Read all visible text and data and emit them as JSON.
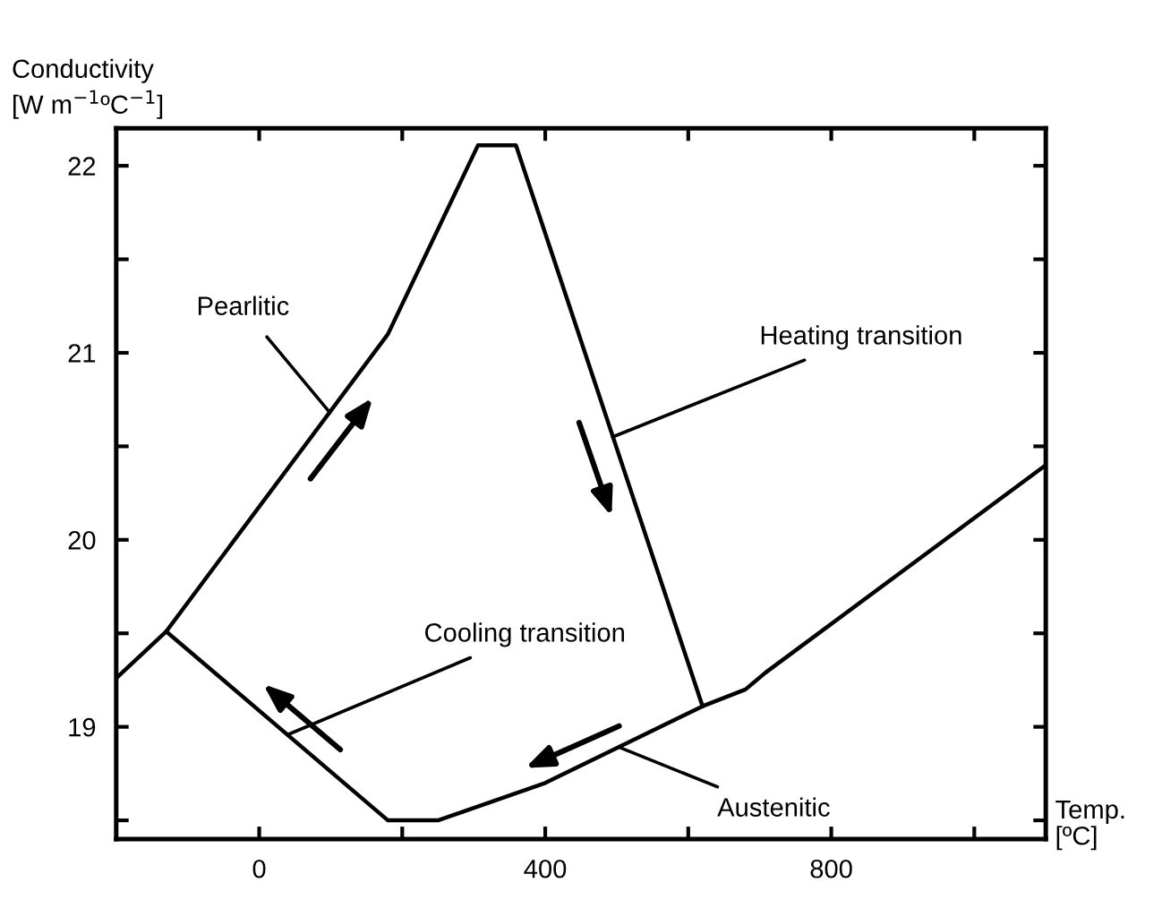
{
  "chart_data": {
    "type": "line",
    "xlabel": "Temp.\n[ºC]",
    "ylabel": "Conductivity\n[W m$^{−1}$ºC$^{−1}$]",
    "series": [
      {
        "color": "#000000",
        "x": [
          -200,
          -130,
          180,
          306,
          359,
          620,
          680,
          708,
          1100
        ],
        "values": [
          19.26,
          19.51,
          21.1,
          22.11,
          22.11,
          19.11,
          19.2,
          19.29,
          20.4
        ]
      },
      {
        "color": "#000000",
        "x": [
          -130,
          180,
          250,
          400,
          620
        ],
        "values": [
          19.51,
          18.5,
          18.5,
          18.7,
          19.11
        ]
      }
    ],
    "xlim": [
      -200,
      1100
    ],
    "xticks": [
      0,
      {
        "value": 200,
        "label": null
      },
      400,
      {
        "value": 600,
        "label": null
      },
      800,
      {
        "value": 1000,
        "label": null
      }
    ],
    "ylim": [
      18.4,
      22.2
    ],
    "yticks": [
      {
        "value": 18.5,
        "label": null
      },
      19,
      {
        "value": 19.5,
        "label": null
      },
      20,
      {
        "value": 20.5,
        "label": null
      },
      21,
      {
        "value": 21.5,
        "label": null
      },
      22
    ],
    "annotations": [
      {
        "text": "Pearlitic",
        "x": 99,
        "y": 20.68
      },
      {
        "text": "Heating transition",
        "x": 494,
        "y": 20.55
      },
      {
        "text": "Cooling transition",
        "x": 41,
        "y": 18.96
      },
      {
        "text": "Austenitic",
        "x": 504,
        "y": 18.89
      }
    ],
    "grid": false,
    "marker": "none",
    "line_style": "solid"
  }
}
